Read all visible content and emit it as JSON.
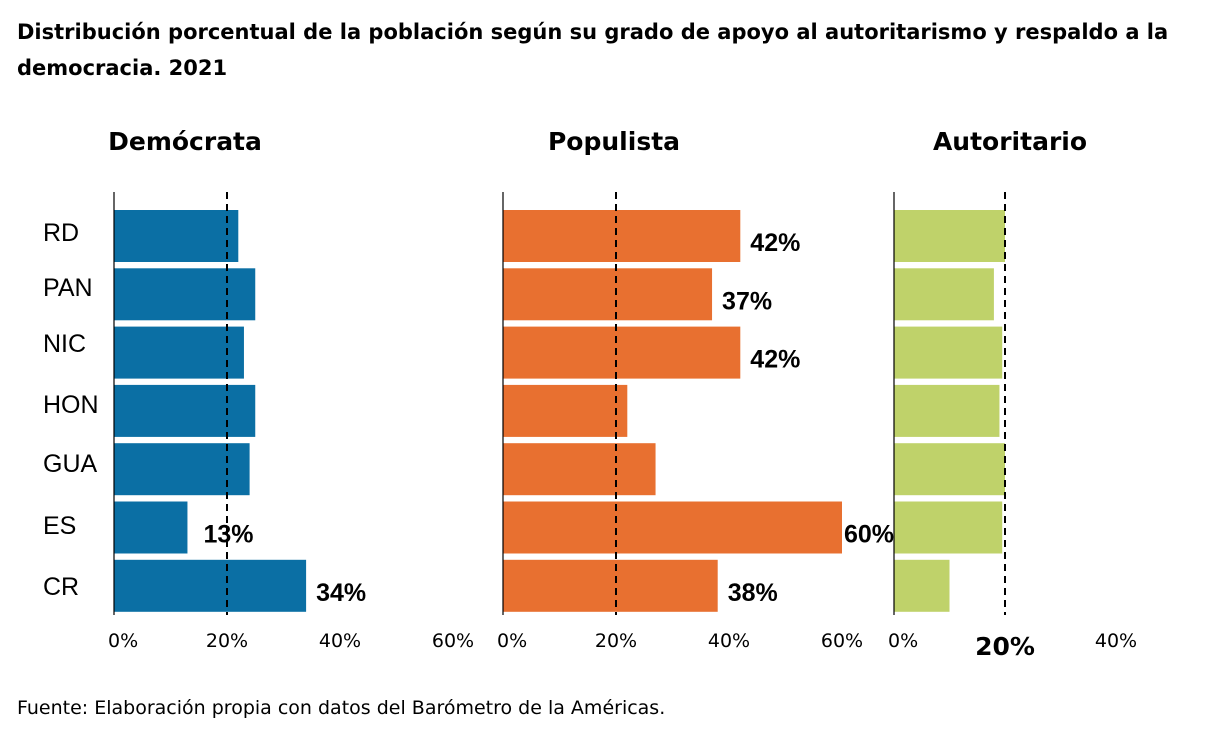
{
  "title": "Distribución porcentual de la población según su grado de apoyo al autoritarismo y respaldo a la democracia. 2021",
  "source": "Fuente: Elaboración propia con datos del Barómetro de la Américas.",
  "chart_data": {
    "type": "bar",
    "orientation": "horizontal",
    "categories": [
      "RD",
      "PAN",
      "NIC",
      "HON",
      "GUA",
      "ES",
      "CR"
    ],
    "panels": [
      {
        "name": "Demócrata",
        "color": "#0b6fa4",
        "xlim": [
          0,
          60
        ],
        "ticks": [
          "0%",
          "20%",
          "40%",
          "60%"
        ],
        "tick_values": [
          0,
          20,
          40,
          60
        ],
        "reference_line": 20,
        "values": [
          22,
          25,
          23,
          25,
          24,
          13,
          34
        ],
        "data_labels": [
          "",
          "",
          "",
          "",
          "",
          "13%",
          "34%"
        ]
      },
      {
        "name": "Populista",
        "color": "#e87030",
        "xlim": [
          0,
          60
        ],
        "ticks": [
          "0%",
          "20%",
          "40%",
          "60%"
        ],
        "tick_values": [
          0,
          20,
          40,
          60
        ],
        "reference_line": 20,
        "values": [
          42,
          37,
          42,
          22,
          27,
          60,
          38
        ],
        "data_labels": [
          "42%",
          "37%",
          "42%",
          "",
          "",
          "60%",
          "38%"
        ]
      },
      {
        "name": "Autoritario",
        "color": "#bfd26a",
        "xlim": [
          0,
          40
        ],
        "ticks": [
          "0%",
          "20%",
          "40%"
        ],
        "tick_values": [
          0,
          20,
          40
        ],
        "highlight_tick": "20%",
        "reference_line": 20,
        "values": [
          20,
          18,
          19.5,
          19,
          20,
          19.5,
          10
        ],
        "data_labels": [
          "",
          "",
          "",
          "",
          "",
          "",
          ""
        ]
      }
    ],
    "grid": false,
    "legend": "none"
  }
}
